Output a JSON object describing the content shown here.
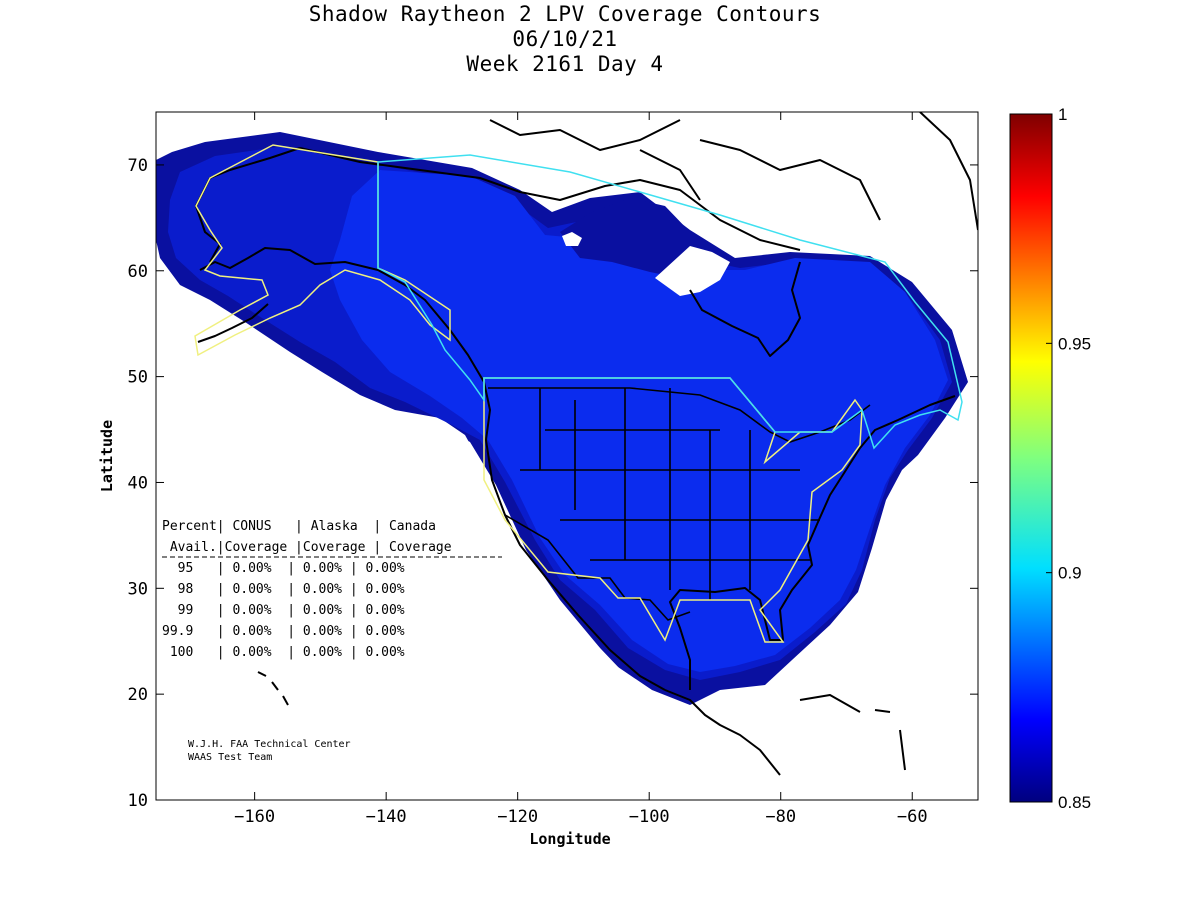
{
  "title": {
    "line1": "Shadow Raytheon 2 LPV Coverage Contours",
    "line2": "06/10/21",
    "line3": "Week 2161 Day 4"
  },
  "axes": {
    "xlabel": "Longitude",
    "ylabel": "Latitude",
    "xlim": [
      -175,
      -50
    ],
    "ylim": [
      10,
      75
    ],
    "xticks": [
      -160,
      -140,
      -120,
      -100,
      -80,
      -60
    ],
    "yticks": [
      10,
      20,
      30,
      40,
      50,
      60,
      70
    ]
  },
  "colorbar": {
    "range": [
      0.85,
      1
    ],
    "labels": [
      "1",
      "0.95",
      "0.9",
      "0.85"
    ],
    "label_values": [
      1,
      0.95,
      0.9,
      0.85
    ]
  },
  "stats_table": {
    "header1": "Percent| CONUS   | Alaska  | Canada",
    "header2": " Avail.|Coverage |Coverage | Coverage",
    "rows": [
      "  95   | 0.00%  | 0.00% | 0.00%",
      "  98   | 0.00%  | 0.00% | 0.00%",
      "  99   | 0.00%  | 0.00% | 0.00%",
      "99.9   | 0.00%  | 0.00% | 0.00%",
      " 100   | 0.00%  | 0.00% | 0.00%"
    ]
  },
  "credits": {
    "line1": "W.J.H. FAA Technical Center",
    "line2": "WAAS Test Team"
  },
  "colors": {
    "coverage_outer": "#0a10a0",
    "coverage_mid": "#0a1ccc",
    "coverage_main": "#0b2cee",
    "conus_boundary": "#f0f080",
    "canada_boundary": "#40e0f0"
  }
}
